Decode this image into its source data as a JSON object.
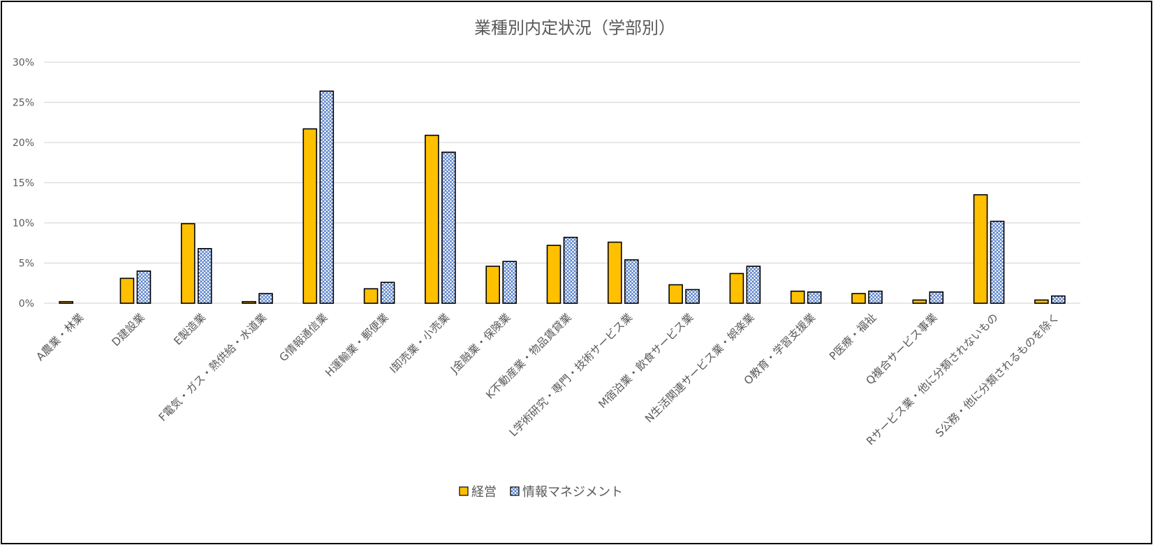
{
  "chart_data": {
    "type": "bar",
    "title": "業種別内定状況（学部別）",
    "categories": [
      "A農業・林業",
      "D建設業",
      "E製造業",
      "F電気・ガス・熱供給・水道業",
      "G情報通信業",
      "H運輸業・郵便業",
      "I卸売業・小売業",
      "J金融業・保険業",
      "K不動産業・物品賃貸業",
      "L学術研究・専門・技術サービス業",
      "M宿泊業・飲食サービス業",
      "N生活関連サービス業・娯楽業",
      "O教育・学習支援業",
      "P医療・福祉",
      "Q複合サービス事業",
      "Rサービス業・他に分類されないもの",
      "S公務・他に分類されるものを除く"
    ],
    "series": [
      {
        "name": "経営",
        "color": "#ffc000",
        "pattern": "solid",
        "values": [
          0.2,
          3.1,
          9.9,
          0.2,
          21.7,
          1.8,
          20.9,
          4.6,
          7.2,
          7.6,
          2.3,
          3.7,
          1.5,
          1.2,
          0.4,
          13.5,
          0.4
        ]
      },
      {
        "name": "情報マネジメント",
        "color": "#4472c4",
        "pattern": "crosshatch",
        "values": [
          0.0,
          4.0,
          6.8,
          1.2,
          26.4,
          2.6,
          18.8,
          5.2,
          8.2,
          5.4,
          1.7,
          4.6,
          1.4,
          1.5,
          1.4,
          10.2,
          0.9
        ]
      }
    ],
    "yticks": [
      "0%",
      "5%",
      "10%",
      "15%",
      "20%",
      "25%",
      "30%"
    ],
    "ylim": [
      0,
      30
    ],
    "grid": true,
    "legend_position": "bottom"
  }
}
